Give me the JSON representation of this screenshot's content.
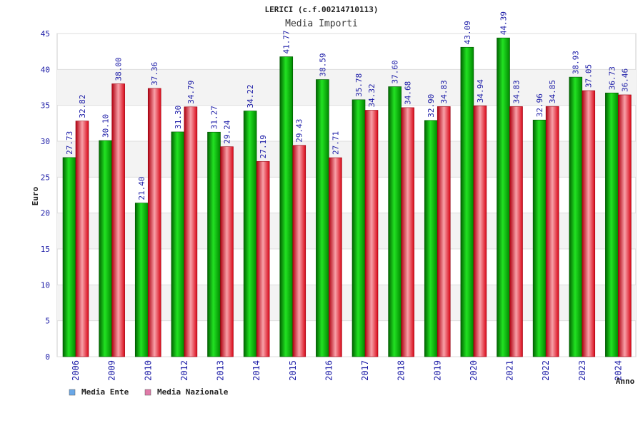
{
  "chart_data": {
    "type": "bar",
    "title": "LERICI (c.f.00214710113)",
    "subtitle": "Media Importi",
    "ylabel": "Euro",
    "xlabel": "Anno",
    "ylim": [
      0,
      45
    ],
    "yticks": [
      "0",
      "5",
      "10",
      "15",
      "20",
      "25",
      "30",
      "35",
      "40",
      "45"
    ],
    "grid": true,
    "legend_position": "bottom-left",
    "categories": [
      "2006",
      "2009",
      "2010",
      "2012",
      "2013",
      "2014",
      "2015",
      "2016",
      "2017",
      "2018",
      "2019",
      "2020",
      "2021",
      "2022",
      "2023",
      "2024"
    ],
    "series": [
      {
        "name": "Media Ente",
        "color": "#00b400",
        "legend_color": "#6aa8e8",
        "values": [
          27.73,
          30.1,
          21.4,
          31.3,
          31.27,
          34.22,
          41.77,
          38.59,
          35.78,
          37.6,
          32.9,
          43.09,
          44.39,
          32.96,
          38.93,
          36.73
        ],
        "labels": [
          "27.73",
          "30.10",
          "21.40",
          "31.30",
          "31.27",
          "34.22",
          "41.77",
          "38.59",
          "35.78",
          "37.60",
          "32.90",
          "43.09",
          "44.39",
          "32.96",
          "38.93",
          "36.73"
        ]
      },
      {
        "name": "Media Nazionale",
        "color": "#e8202a",
        "legend_color": "#e07aa8",
        "values": [
          32.82,
          38.0,
          37.36,
          34.79,
          29.24,
          27.19,
          29.43,
          27.71,
          34.32,
          34.68,
          34.83,
          34.94,
          34.83,
          34.85,
          37.05,
          36.46
        ],
        "labels": [
          "32.82",
          "38.00",
          "37.36",
          "34.79",
          "29.24",
          "27.19",
          "29.43",
          "27.71",
          "34.32",
          "34.68",
          "34.83",
          "34.94",
          "34.83",
          "34.85",
          "37.05",
          "36.46"
        ]
      }
    ]
  }
}
